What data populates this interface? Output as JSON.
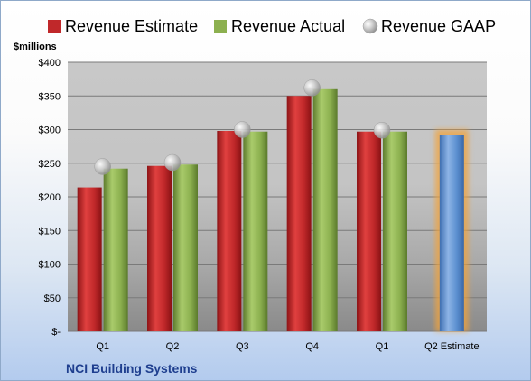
{
  "chart_data": {
    "type": "bar",
    "unit_label": "$millions",
    "company": "NCI Building Systems",
    "categories": [
      "Q1",
      "Q2",
      "Q3",
      "Q4",
      "Q1",
      "Q2 Estimate"
    ],
    "ylim": [
      0,
      400
    ],
    "yticks": [
      0,
      50,
      100,
      150,
      200,
      250,
      300,
      350,
      400
    ],
    "ytick_labels": [
      "$-",
      "$50",
      "$100",
      "$150",
      "$200",
      "$250",
      "$300",
      "$350",
      "$400"
    ],
    "grid": true,
    "legend_position": "top",
    "series": [
      {
        "name": "Revenue Estimate",
        "color": "#c0282a",
        "values": [
          214,
          246,
          298,
          350,
          297,
          null
        ]
      },
      {
        "name": "Revenue Actual",
        "color": "#8cb04f",
        "values": [
          242,
          248,
          297,
          360,
          297,
          null
        ]
      },
      {
        "name": "Revenue GAAP",
        "color": "#b8b8b8",
        "marker": "sphere",
        "values": [
          245,
          251,
          300,
          362,
          299,
          null
        ]
      },
      {
        "name": "Q2 Estimate",
        "color": "#5b8fd0",
        "highlight": "#f2a33a",
        "values": [
          null,
          null,
          null,
          null,
          null,
          292
        ]
      }
    ]
  }
}
